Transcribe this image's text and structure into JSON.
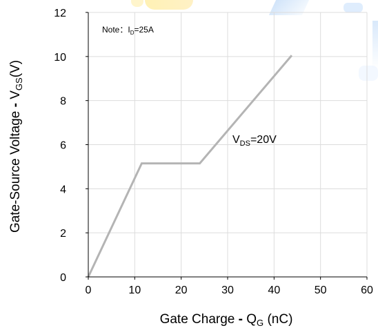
{
  "chart_data": {
    "type": "line",
    "xlabel_parts": [
      "Gate Charge ",
      "- ",
      "Q",
      "G",
      " (nC)"
    ],
    "ylabel_parts": [
      "Gate-Source Voltage ",
      "- ",
      "V",
      "GS",
      "(V)"
    ],
    "note_parts": [
      "Note：",
      "I",
      "D",
      "=25A"
    ],
    "xlim": [
      0,
      60
    ],
    "ylim": [
      0,
      12
    ],
    "xticks": [
      0,
      10,
      20,
      30,
      40,
      50,
      60
    ],
    "yticks": [
      0,
      2,
      4,
      6,
      8,
      10,
      12
    ],
    "grid": true,
    "series": [
      {
        "label_parts": [
          "V",
          "DS",
          "=20V"
        ],
        "color": "#b4b4b4",
        "x": [
          0,
          11.5,
          24,
          43.8
        ],
        "y": [
          0,
          5.15,
          5.15,
          10.05
        ]
      }
    ],
    "colors": {
      "grid": "#dcdcdc",
      "axis": "#000000",
      "text": "#000000"
    }
  }
}
